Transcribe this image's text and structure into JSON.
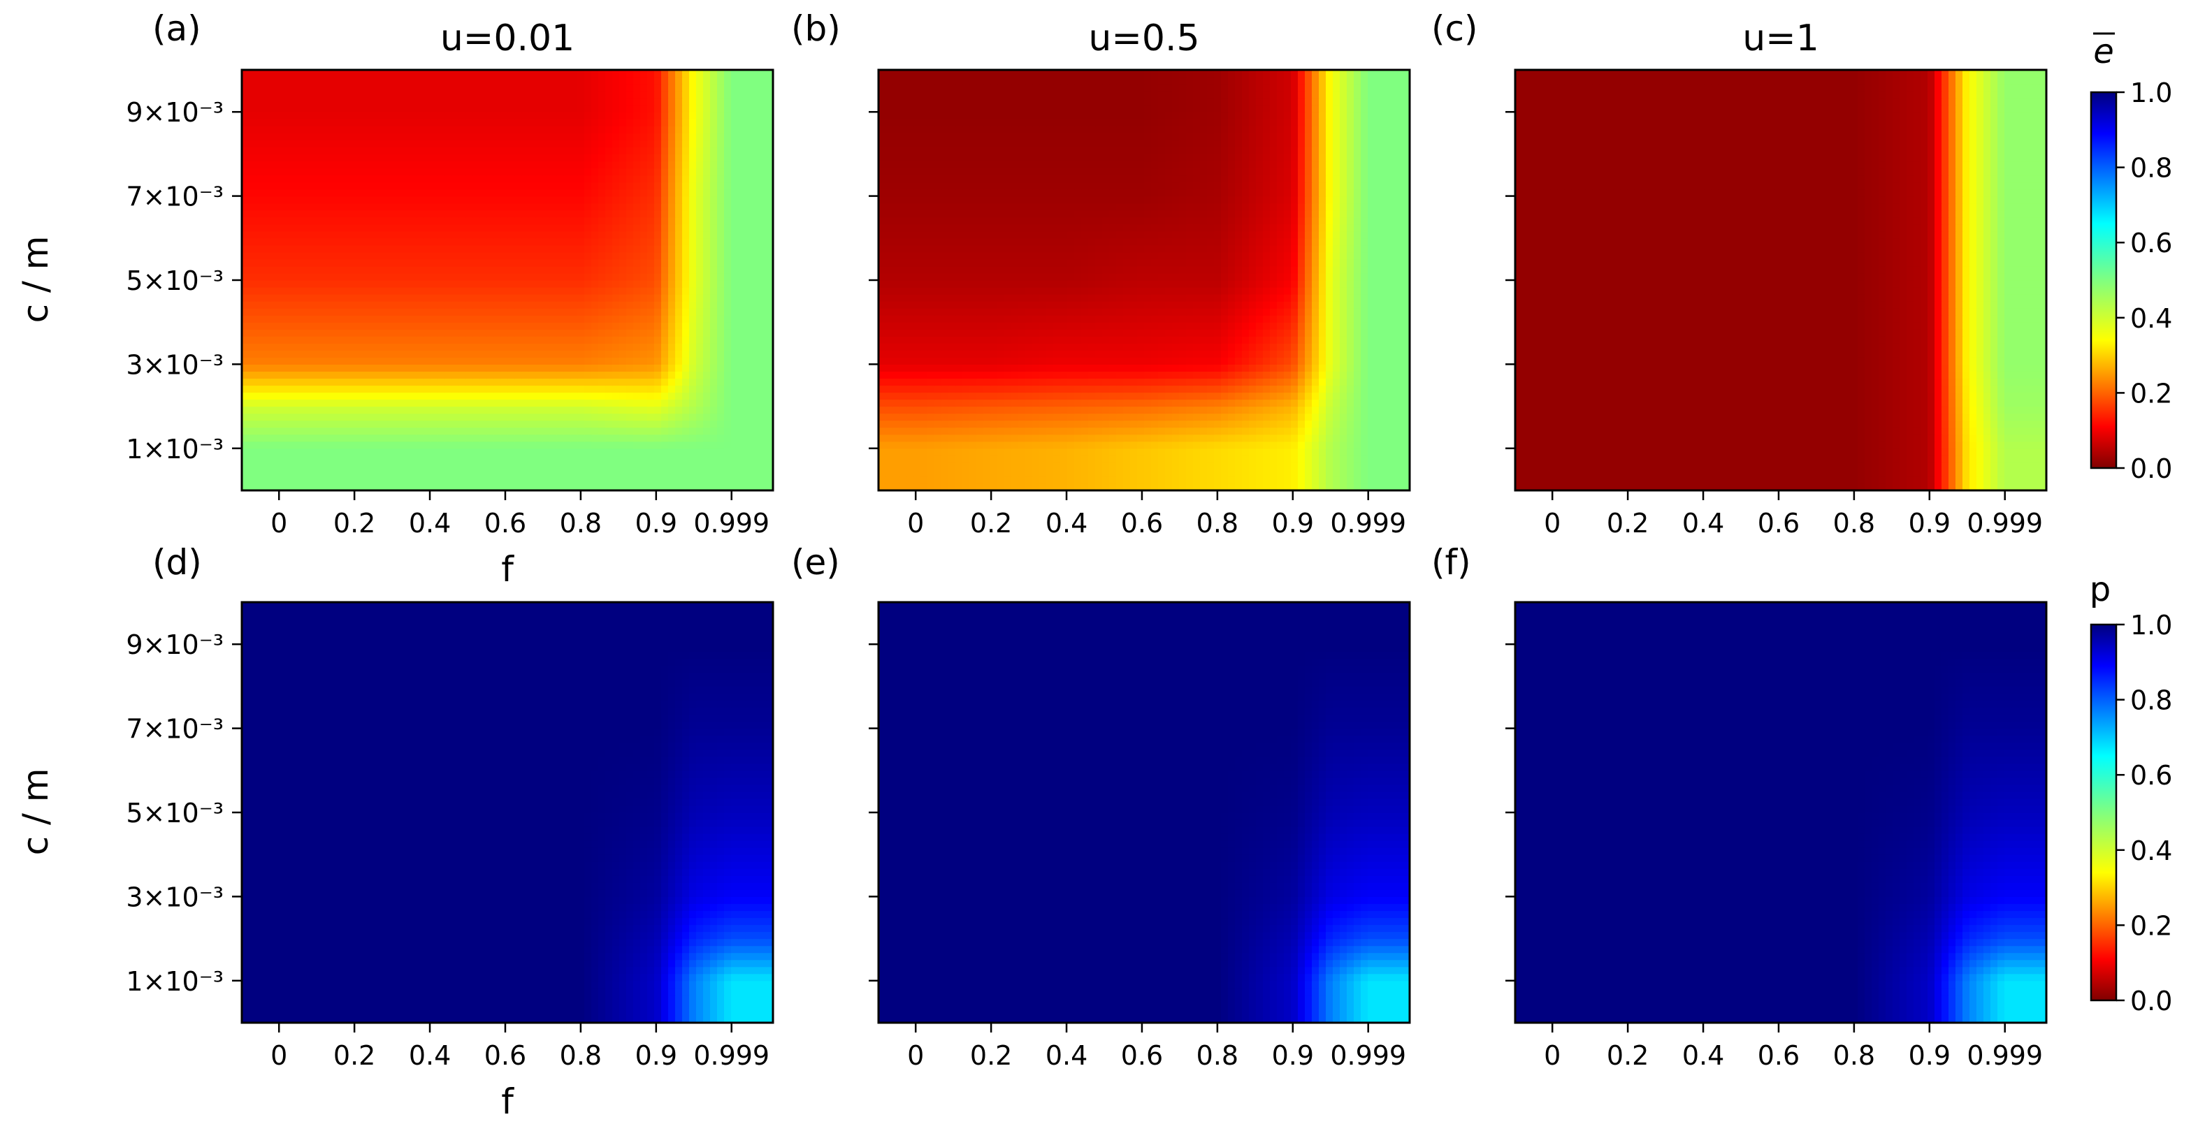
{
  "chart_data": [
    {
      "type": "heatmap",
      "panel": "(a)",
      "title": "u=0.01",
      "xlabel": "f",
      "ylabel": "c / m",
      "x_ticks": [
        "0",
        "0.2",
        "0.4",
        "0.6",
        "0.8",
        "0.9",
        "0.999"
      ],
      "y_ticks": [
        "1×10⁻³",
        "3×10⁻³",
        "5×10⁻³",
        "7×10⁻³",
        "9×10⁻³"
      ],
      "colorbar": "e",
      "x_columns": [
        "0",
        "0.2",
        "0.4",
        "0.6",
        "0.8",
        "0.9",
        "0.95",
        "0.999"
      ],
      "y_rows": [
        "1×10⁻³",
        "2×10⁻³",
        "3×10⁻³",
        "5×10⁻³",
        "7×10⁻³",
        "9×10⁻³"
      ],
      "values_approx": [
        [
          0.5,
          0.5,
          0.5,
          0.5,
          0.5,
          0.5,
          0.5,
          0.5
        ],
        [
          0.42,
          0.42,
          0.42,
          0.42,
          0.42,
          0.4,
          0.45,
          0.5
        ],
        [
          0.25,
          0.25,
          0.25,
          0.25,
          0.25,
          0.27,
          0.42,
          0.5
        ],
        [
          0.17,
          0.17,
          0.17,
          0.17,
          0.17,
          0.2,
          0.4,
          0.5
        ],
        [
          0.13,
          0.13,
          0.13,
          0.13,
          0.13,
          0.17,
          0.4,
          0.5
        ],
        [
          0.1,
          0.1,
          0.1,
          0.1,
          0.1,
          0.14,
          0.38,
          0.5
        ]
      ]
    },
    {
      "type": "heatmap",
      "panel": "(b)",
      "title": "u=0.5",
      "x_ticks": [
        "0",
        "0.2",
        "0.4",
        "0.6",
        "0.8",
        "0.9",
        "0.999"
      ],
      "colorbar": "e",
      "x_columns": [
        "0",
        "0.2",
        "0.4",
        "0.6",
        "0.8",
        "0.9",
        "0.95",
        "0.999"
      ],
      "y_rows": [
        "1×10⁻³",
        "2×10⁻³",
        "3×10⁻³",
        "5×10⁻³",
        "7×10⁻³",
        "9×10⁻³"
      ],
      "values_approx": [
        [
          0.28,
          0.29,
          0.3,
          0.32,
          0.34,
          0.36,
          0.45,
          0.5
        ],
        [
          0.2,
          0.21,
          0.22,
          0.23,
          0.25,
          0.3,
          0.43,
          0.5
        ],
        [
          0.1,
          0.1,
          0.11,
          0.11,
          0.12,
          0.2,
          0.4,
          0.5
        ],
        [
          0.05,
          0.05,
          0.05,
          0.06,
          0.06,
          0.12,
          0.4,
          0.5
        ],
        [
          0.03,
          0.03,
          0.03,
          0.03,
          0.04,
          0.09,
          0.38,
          0.5
        ],
        [
          0.02,
          0.02,
          0.02,
          0.02,
          0.03,
          0.08,
          0.38,
          0.5
        ]
      ]
    },
    {
      "type": "heatmap",
      "panel": "(c)",
      "title": "u=1",
      "x_ticks": [
        "0",
        "0.2",
        "0.4",
        "0.6",
        "0.8",
        "0.9",
        "0.999"
      ],
      "colorbar": "e",
      "x_columns": [
        "0",
        "0.2",
        "0.4",
        "0.6",
        "0.8",
        "0.9",
        "0.95",
        "0.999"
      ],
      "y_rows": [
        "1×10⁻³",
        "2×10⁻³",
        "3×10⁻³",
        "5×10⁻³",
        "7×10⁻³",
        "9×10⁻³"
      ],
      "values_approx": [
        [
          0.02,
          0.02,
          0.02,
          0.02,
          0.02,
          0.05,
          0.35,
          0.45
        ],
        [
          0.02,
          0.02,
          0.02,
          0.02,
          0.02,
          0.05,
          0.36,
          0.47
        ],
        [
          0.02,
          0.02,
          0.02,
          0.02,
          0.02,
          0.05,
          0.37,
          0.48
        ],
        [
          0.02,
          0.02,
          0.02,
          0.02,
          0.02,
          0.05,
          0.37,
          0.48
        ],
        [
          0.02,
          0.02,
          0.02,
          0.02,
          0.02,
          0.05,
          0.37,
          0.48
        ],
        [
          0.02,
          0.02,
          0.02,
          0.02,
          0.02,
          0.05,
          0.37,
          0.48
        ]
      ]
    },
    {
      "type": "heatmap",
      "panel": "(d)",
      "xlabel": "f",
      "ylabel": "c / m",
      "x_ticks": [
        "0",
        "0.2",
        "0.4",
        "0.6",
        "0.8",
        "0.9",
        "0.999"
      ],
      "y_ticks": [
        "1×10⁻³",
        "3×10⁻³",
        "5×10⁻³",
        "7×10⁻³",
        "9×10⁻³"
      ],
      "colorbar": "p",
      "x_columns": [
        "0",
        "0.2",
        "0.4",
        "0.6",
        "0.8",
        "0.9",
        "0.95",
        "0.999"
      ],
      "y_rows": [
        "1×10⁻³",
        "2×10⁻³",
        "3×10⁻³",
        "5×10⁻³",
        "7×10⁻³",
        "9×10⁻³"
      ],
      "values_approx": [
        [
          1.0,
          1.0,
          1.0,
          1.0,
          1.0,
          0.93,
          0.75,
          0.65
        ],
        [
          1.0,
          1.0,
          1.0,
          1.0,
          1.0,
          0.95,
          0.84,
          0.8
        ],
        [
          1.0,
          1.0,
          1.0,
          1.0,
          1.0,
          0.97,
          0.9,
          0.88
        ],
        [
          1.0,
          1.0,
          1.0,
          1.0,
          1.0,
          0.99,
          0.95,
          0.94
        ],
        [
          1.0,
          1.0,
          1.0,
          1.0,
          1.0,
          1.0,
          0.98,
          0.98
        ],
        [
          1.0,
          1.0,
          1.0,
          1.0,
          1.0,
          1.0,
          1.0,
          1.0
        ]
      ]
    },
    {
      "type": "heatmap",
      "panel": "(e)",
      "x_ticks": [
        "0",
        "0.2",
        "0.4",
        "0.6",
        "0.8",
        "0.9",
        "0.999"
      ],
      "colorbar": "p",
      "x_columns": [
        "0",
        "0.2",
        "0.4",
        "0.6",
        "0.8",
        "0.9",
        "0.95",
        "0.999"
      ],
      "y_rows": [
        "1×10⁻³",
        "2×10⁻³",
        "3×10⁻³",
        "5×10⁻³",
        "7×10⁻³",
        "9×10⁻³"
      ],
      "values_approx": [
        [
          1.0,
          1.0,
          1.0,
          1.0,
          1.0,
          0.93,
          0.75,
          0.65
        ],
        [
          1.0,
          1.0,
          1.0,
          1.0,
          1.0,
          0.95,
          0.84,
          0.8
        ],
        [
          1.0,
          1.0,
          1.0,
          1.0,
          1.0,
          0.97,
          0.9,
          0.88
        ],
        [
          1.0,
          1.0,
          1.0,
          1.0,
          1.0,
          0.99,
          0.95,
          0.94
        ],
        [
          1.0,
          1.0,
          1.0,
          1.0,
          1.0,
          1.0,
          0.98,
          0.98
        ],
        [
          1.0,
          1.0,
          1.0,
          1.0,
          1.0,
          1.0,
          1.0,
          1.0
        ]
      ]
    },
    {
      "type": "heatmap",
      "panel": "(f)",
      "x_ticks": [
        "0",
        "0.2",
        "0.4",
        "0.6",
        "0.8",
        "0.9",
        "0.999"
      ],
      "colorbar": "p",
      "x_columns": [
        "0",
        "0.2",
        "0.4",
        "0.6",
        "0.8",
        "0.9",
        "0.95",
        "0.999"
      ],
      "y_rows": [
        "1×10⁻³",
        "2×10⁻³",
        "3×10⁻³",
        "5×10⁻³",
        "7×10⁻³",
        "9×10⁻³"
      ],
      "values_approx": [
        [
          1.0,
          1.0,
          1.0,
          1.0,
          1.0,
          0.93,
          0.75,
          0.65
        ],
        [
          1.0,
          1.0,
          1.0,
          1.0,
          1.0,
          0.95,
          0.84,
          0.8
        ],
        [
          1.0,
          1.0,
          1.0,
          1.0,
          1.0,
          0.97,
          0.9,
          0.88
        ],
        [
          1.0,
          1.0,
          1.0,
          1.0,
          1.0,
          0.99,
          0.95,
          0.94
        ],
        [
          1.0,
          1.0,
          1.0,
          1.0,
          1.0,
          1.0,
          0.98,
          0.98
        ],
        [
          1.0,
          1.0,
          1.0,
          1.0,
          1.0,
          1.0,
          1.0,
          1.0
        ]
      ]
    }
  ],
  "colorbars": [
    {
      "label": "e",
      "overline": true,
      "colormap": "jet_r",
      "ticks": [
        "0.0",
        "0.2",
        "0.4",
        "0.6",
        "0.8",
        "1.0"
      ],
      "range": [
        0,
        1
      ]
    },
    {
      "label": "p",
      "overline": false,
      "colormap": "jet_r",
      "ticks": [
        "0.0",
        "0.2",
        "0.4",
        "0.6",
        "0.8",
        "1.0"
      ],
      "range": [
        0,
        1
      ]
    }
  ]
}
